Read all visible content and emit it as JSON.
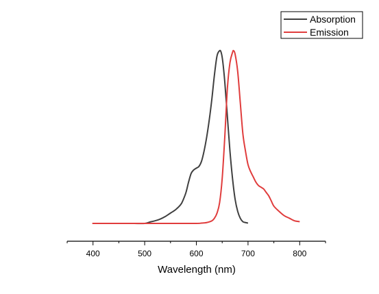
{
  "chart_data": {
    "type": "line",
    "title": "",
    "xlabel": "Wavelength (nm)",
    "ylabel": "",
    "xlim": [
      350,
      850
    ],
    "ylim": [
      -0.05,
      1.05
    ],
    "xticks": [
      400,
      500,
      600,
      700,
      800
    ],
    "xminor_step": 50,
    "y_axis_shown": false,
    "grid": false,
    "legend": "top-right",
    "series": [
      {
        "name": "Absorption",
        "color": "#3f3f3f",
        "x": [
          465,
          480,
          500,
          510,
          520,
          530,
          540,
          550,
          560,
          570,
          575,
          580,
          585,
          590,
          595,
          600,
          605,
          610,
          615,
          620,
          625,
          630,
          635,
          640,
          645,
          648,
          651,
          655,
          660,
          665,
          670,
          675,
          680,
          685,
          690,
          695,
          700
        ],
        "y": [
          0.0,
          0.0,
          0.0,
          0.008,
          0.015,
          0.025,
          0.04,
          0.06,
          0.08,
          0.11,
          0.14,
          0.18,
          0.24,
          0.29,
          0.31,
          0.32,
          0.33,
          0.36,
          0.42,
          0.5,
          0.6,
          0.72,
          0.86,
          0.97,
          1.0,
          0.99,
          0.94,
          0.82,
          0.62,
          0.42,
          0.26,
          0.14,
          0.07,
          0.03,
          0.01,
          0.005,
          0.002
        ]
      },
      {
        "name": "Emission",
        "color": "#e03c3c",
        "x": [
          400,
          405,
          450,
          500,
          550,
          600,
          610,
          620,
          630,
          635,
          640,
          645,
          650,
          655,
          660,
          665,
          670,
          672,
          675,
          680,
          685,
          690,
          695,
          700,
          705,
          710,
          715,
          720,
          725,
          730,
          735,
          740,
          745,
          750,
          760,
          770,
          780,
          790,
          800
        ],
        "y": [
          0.0,
          0.0,
          0.0,
          0.0,
          0.0,
          0.0,
          0.002,
          0.005,
          0.015,
          0.03,
          0.06,
          0.12,
          0.26,
          0.5,
          0.78,
          0.93,
          0.99,
          1.0,
          0.98,
          0.88,
          0.7,
          0.52,
          0.42,
          0.34,
          0.3,
          0.27,
          0.24,
          0.22,
          0.21,
          0.2,
          0.18,
          0.16,
          0.13,
          0.1,
          0.07,
          0.045,
          0.03,
          0.015,
          0.01
        ]
      }
    ]
  }
}
